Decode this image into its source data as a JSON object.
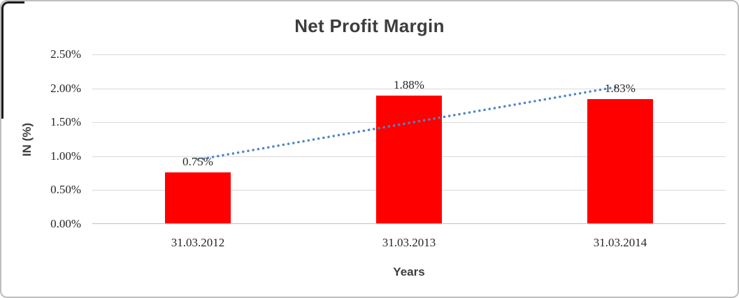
{
  "chart_data": {
    "type": "bar",
    "title": "Net Profit Margin",
    "xlabel": "Years",
    "ylabel": "IN (%)",
    "categories": [
      "31.03.2012",
      "31.03.2013",
      "31.03.2014"
    ],
    "values": [
      0.75,
      1.88,
      1.83
    ],
    "data_labels": [
      "0.75%",
      "1.88%",
      "1.83%"
    ],
    "ylim": [
      0,
      2.5
    ],
    "ytick_step": 0.5,
    "ytick_labels": [
      "0.00%",
      "0.50%",
      "1.00%",
      "1.50%",
      "2.00%",
      "2.50%"
    ],
    "grid": true,
    "legend": false,
    "bar_color": "#FF0000",
    "gridline_color": "#D9D9D9",
    "text_color": "#262626",
    "title_color": "#3D3D3D",
    "trendline": {
      "style": "dotted",
      "color": "#4E86C8",
      "start_value": 0.95,
      "end_value": 2.03
    }
  }
}
